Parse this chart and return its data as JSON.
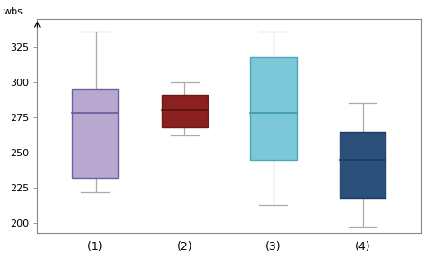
{
  "boxes": [
    {
      "label": "(1)",
      "whisker_low": 222,
      "q1": 232,
      "median": 278,
      "q3": 295,
      "whisker_high": 336,
      "color": "#b8a8d0",
      "edge_color": "#7060a0",
      "median_color": "#6858a0"
    },
    {
      "label": "(2)",
      "whisker_low": 262,
      "q1": 268,
      "median": 280,
      "q3": 291,
      "whisker_high": 300,
      "color": "#8b2020",
      "edge_color": "#6a1818",
      "median_color": "#5a1010"
    },
    {
      "label": "(3)",
      "whisker_low": 213,
      "q1": 245,
      "median": 278,
      "q3": 318,
      "whisker_high": 336,
      "color": "#7ac8d8",
      "edge_color": "#4aA8b8",
      "median_color": "#3a98a8"
    },
    {
      "label": "(4)",
      "whisker_low": 198,
      "q1": 218,
      "median": 245,
      "q3": 265,
      "whisker_high": 285,
      "color": "#2a507a",
      "edge_color": "#1a3868",
      "median_color": "#1a3868"
    }
  ],
  "ylim": [
    193,
    345
  ],
  "yticks": [
    200,
    225,
    250,
    275,
    300,
    325
  ],
  "ylabel": "wbs",
  "background_color": "#ffffff",
  "plot_bg_color": "#ffffff",
  "box_width": 0.52,
  "positions": [
    1,
    2,
    3,
    4
  ],
  "xlim": [
    0.35,
    4.65
  ],
  "whisker_color": "#aaaaaa",
  "border_color": "#888888",
  "tick_fontsize": 8,
  "label_fontsize": 9
}
